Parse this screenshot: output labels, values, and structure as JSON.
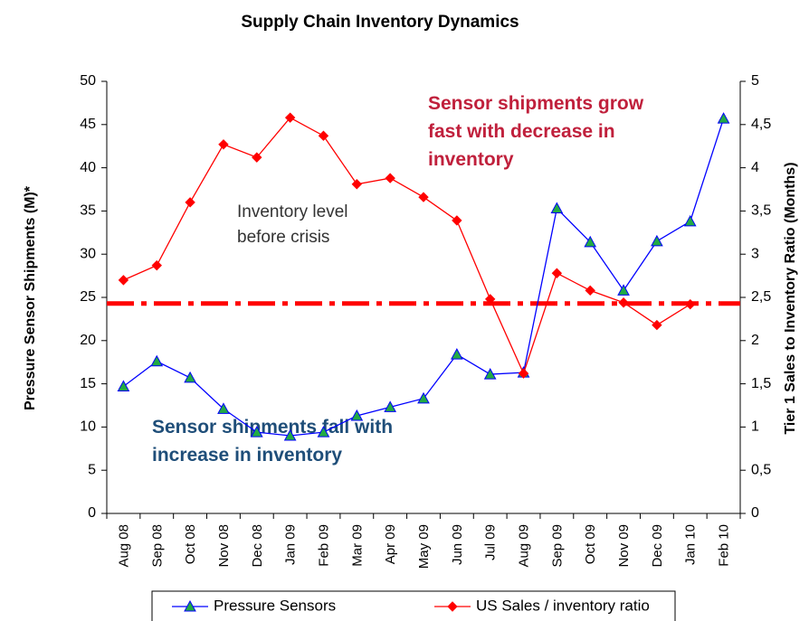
{
  "chart_data": {
    "type": "line",
    "title": "Supply Chain Inventory Dynamics",
    "y_label": "Pressure Sensor Shipments (M)*",
    "y2_label": "Tier 1 Sales to Inventory Ratio (Months)",
    "categories": [
      "Aug 08",
      "Sep 08",
      "Oct 08",
      "Nov 08",
      "Dec 08",
      "Jan 09",
      "Feb 09",
      "Mar 09",
      "Apr 09",
      "May 09",
      "Jun 09",
      "Jul 09",
      "Aug 09",
      "Sep 09",
      "Oct 09",
      "Nov 09",
      "Dec 09",
      "Jan 10",
      "Feb 10"
    ],
    "series": [
      {
        "name": "Pressure Sensors",
        "color": "#0000ff",
        "marker": "triangle",
        "values": [
          14.7,
          17.6,
          15.7,
          12.1,
          9.4,
          9.0,
          9.4,
          11.3,
          12.3,
          13.3,
          18.4,
          16.1,
          16.3,
          35.3,
          31.4,
          25.8,
          31.5,
          33.8,
          45.7
        ]
      },
      {
        "name": "US Sales / inventory ratio",
        "color": "#ff0000",
        "marker": "diamond",
        "axis": "y2",
        "values": [
          2.7,
          2.87,
          3.6,
          4.27,
          4.12,
          4.58,
          4.37,
          3.81,
          3.88,
          3.66,
          3.39,
          2.48,
          1.62,
          2.78,
          2.58,
          2.44,
          2.18,
          2.42,
          null
        ]
      }
    ],
    "ylim": [
      0,
      50
    ],
    "yticks": [
      0,
      5,
      10,
      15,
      20,
      25,
      30,
      35,
      40,
      45,
      50
    ],
    "y2lim": [
      0,
      5
    ],
    "y2ticks": [
      0,
      {
        "value": 0.5,
        "label": "0,5"
      },
      1,
      {
        "value": 1.5,
        "label": "1,5"
      },
      2,
      {
        "value": 2.5,
        "label": "2,5"
      },
      3,
      {
        "value": 3.5,
        "label": "3,5"
      },
      4,
      {
        "value": 4.5,
        "label": "4,5"
      },
      5
    ],
    "reference_line": {
      "value": 24.3,
      "color": "#ff0000",
      "label": [
        "Inventory level",
        "before crisis"
      ]
    },
    "annotations": [
      {
        "lines": [
          "Sensor shipments grow",
          "fast with decrease in",
          "inventory"
        ],
        "color": "#c0203c"
      },
      {
        "lines": [
          "Sensor shipments fall with",
          "increase in inventory"
        ],
        "color": "#1f4e79"
      }
    ],
    "legend": "bottom"
  }
}
